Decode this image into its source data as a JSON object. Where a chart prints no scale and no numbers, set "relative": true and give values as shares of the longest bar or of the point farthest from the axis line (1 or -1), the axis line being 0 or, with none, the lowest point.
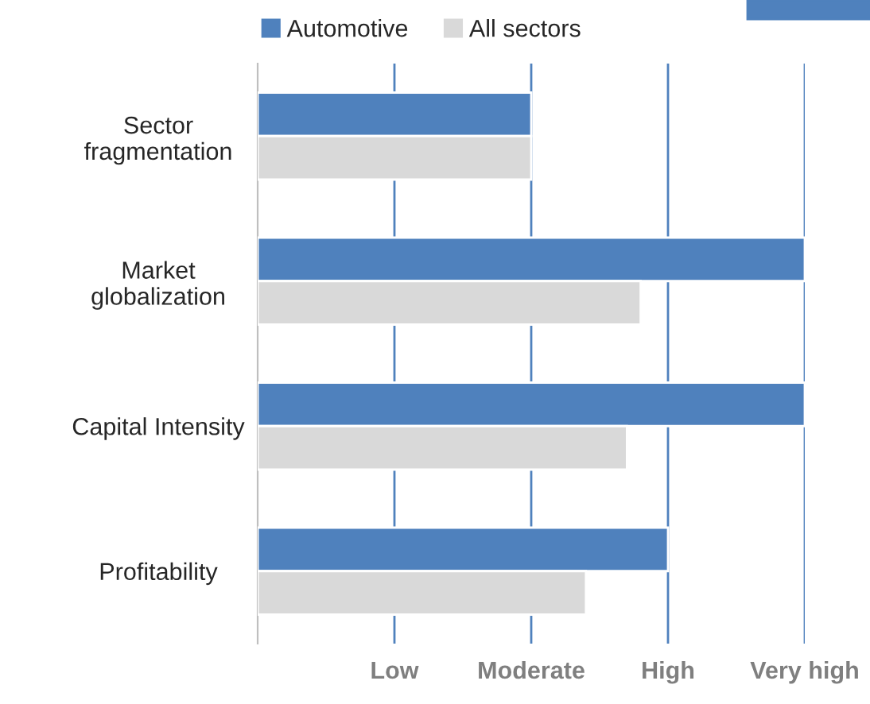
{
  "chart_data": {
    "type": "bar",
    "orientation": "horizontal",
    "relative": true,
    "categories": [
      "Sector\nfragmentation",
      "Market\nglobalization",
      "Capital Intensity",
      "Profitability"
    ],
    "series": [
      {
        "name": "Automotive",
        "color": "#4f81bd",
        "values": [
          0.5,
          1,
          1,
          0.75
        ]
      },
      {
        "name": "All sectors",
        "color": "#d9d9d9",
        "values": [
          0.5,
          0.7,
          0.675,
          0.6
        ]
      }
    ],
    "annotations": [
      "Low",
      "Moderate",
      "High",
      "Very high"
    ],
    "ref_lines": [
      {
        "axis": "x",
        "value": 0.25
      },
      {
        "axis": "x",
        "value": 0.5
      },
      {
        "axis": "x",
        "value": 0.75
      },
      {
        "axis": "x",
        "value": 1
      }
    ],
    "legend": "top"
  }
}
